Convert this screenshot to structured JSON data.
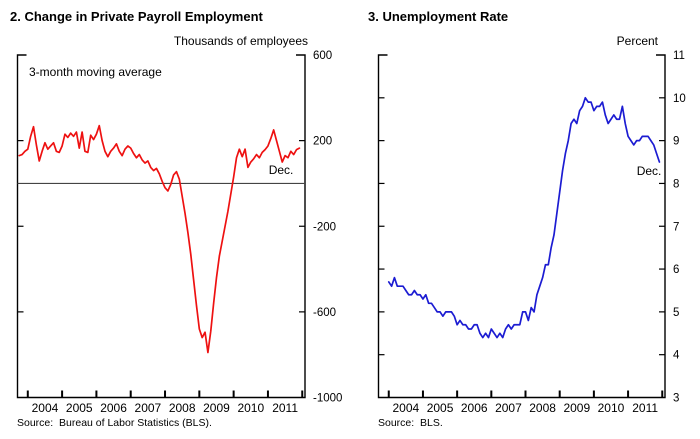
{
  "figure": {
    "background_color": "#ffffff",
    "frame_color": "#000000"
  },
  "chart_data": [
    {
      "type": "line",
      "title": "2. Change in Private Payroll Employment",
      "unit_label": "Thousands of employees",
      "annotation": "3-month moving average",
      "end_point_label": "Dec.",
      "source": "Source:  Bureau of Labor Statistics (BLS).",
      "line_color": "#ee1111",
      "grid": "off",
      "legend": "none",
      "zero_line": true,
      "x_range": [
        2003.7,
        2012.08
      ],
      "ylim": [
        -1000,
        600
      ],
      "y_tick_values": [
        600,
        200,
        -200,
        -600,
        -1000
      ],
      "y_tick_labels": [
        "600",
        "200",
        "-200",
        "-600",
        "-1000"
      ],
      "y_minor_tick_values": [
        200,
        -200,
        -600
      ],
      "x_tick_values": [
        2004,
        2005,
        2006,
        2007,
        2008,
        2009,
        2010,
        2011,
        2012
      ],
      "x_year_labels": [
        "2004",
        "2005",
        "2006",
        "2007",
        "2008",
        "2009",
        "2010",
        "2011"
      ],
      "series": [
        {
          "name": "Change in private payroll employment, 3-month moving average, thousands of employees (monthly, Oct 2003 - Dec 2011)",
          "x_start": 2003.75,
          "x_step_years": 0.0833333,
          "values": [
            130,
            135,
            150,
            160,
            220,
            265,
            180,
            105,
            150,
            190,
            160,
            175,
            190,
            150,
            145,
            175,
            230,
            215,
            235,
            220,
            240,
            165,
            240,
            150,
            145,
            225,
            205,
            230,
            270,
            200,
            150,
            125,
            150,
            165,
            185,
            150,
            130,
            160,
            175,
            165,
            140,
            120,
            135,
            110,
            95,
            105,
            75,
            60,
            70,
            45,
            10,
            -20,
            -35,
            -5,
            40,
            55,
            20,
            -60,
            -140,
            -230,
            -330,
            -450,
            -570,
            -680,
            -720,
            -695,
            -790,
            -690,
            -560,
            -440,
            -340,
            -270,
            -200,
            -130,
            -50,
            30,
            120,
            160,
            125,
            160,
            75,
            100,
            115,
            135,
            120,
            145,
            158,
            175,
            210,
            250,
            200,
            150,
            100,
            130,
            120,
            150,
            135,
            158,
            165
          ]
        }
      ]
    },
    {
      "type": "line",
      "title": "3. Unemployment Rate",
      "unit_label": "Percent",
      "annotation": "",
      "end_point_label": "Dec.",
      "source": "Source:  BLS.",
      "line_color": "#1c1cd2",
      "grid": "off",
      "legend": "none",
      "zero_line": false,
      "x_range": [
        2003.7,
        2012.08
      ],
      "ylim": [
        3,
        11
      ],
      "y_tick_values": [
        11,
        10,
        9,
        8,
        7,
        6,
        5,
        4,
        3
      ],
      "y_tick_labels": [
        "11",
        "10",
        "9",
        "8",
        "7",
        "6",
        "5",
        "4",
        "3"
      ],
      "y_minor_tick_values": [
        10,
        9,
        8,
        7,
        6,
        5,
        4
      ],
      "x_tick_values": [
        2004,
        2005,
        2006,
        2007,
        2008,
        2009,
        2010,
        2011,
        2012
      ],
      "x_year_labels": [
        "2004",
        "2005",
        "2006",
        "2007",
        "2008",
        "2009",
        "2010",
        "2011"
      ],
      "series": [
        {
          "name": "Civilian unemployment rate, percent (monthly, Jan 2004 - Dec 2011)",
          "x_start": 2004.0,
          "x_step_years": 0.0833333,
          "values": [
            5.7,
            5.6,
            5.8,
            5.6,
            5.6,
            5.6,
            5.5,
            5.4,
            5.4,
            5.5,
            5.4,
            5.4,
            5.3,
            5.4,
            5.2,
            5.2,
            5.1,
            5.0,
            5.0,
            4.9,
            5.0,
            5.0,
            5.0,
            4.9,
            4.7,
            4.8,
            4.7,
            4.7,
            4.6,
            4.6,
            4.7,
            4.7,
            4.5,
            4.4,
            4.5,
            4.4,
            4.6,
            4.5,
            4.4,
            4.5,
            4.4,
            4.6,
            4.7,
            4.6,
            4.7,
            4.7,
            4.7,
            5.0,
            5.0,
            4.8,
            5.1,
            5.0,
            5.4,
            5.6,
            5.8,
            6.1,
            6.1,
            6.5,
            6.8,
            7.3,
            7.8,
            8.3,
            8.7,
            9.0,
            9.4,
            9.5,
            9.4,
            9.7,
            9.8,
            10.0,
            9.9,
            9.9,
            9.7,
            9.8,
            9.8,
            9.9,
            9.6,
            9.4,
            9.5,
            9.6,
            9.5,
            9.5,
            9.8,
            9.4,
            9.1,
            9.0,
            8.9,
            9.0,
            9.0,
            9.1,
            9.1,
            9.1,
            9.0,
            8.9,
            8.7,
            8.5
          ]
        }
      ]
    }
  ]
}
